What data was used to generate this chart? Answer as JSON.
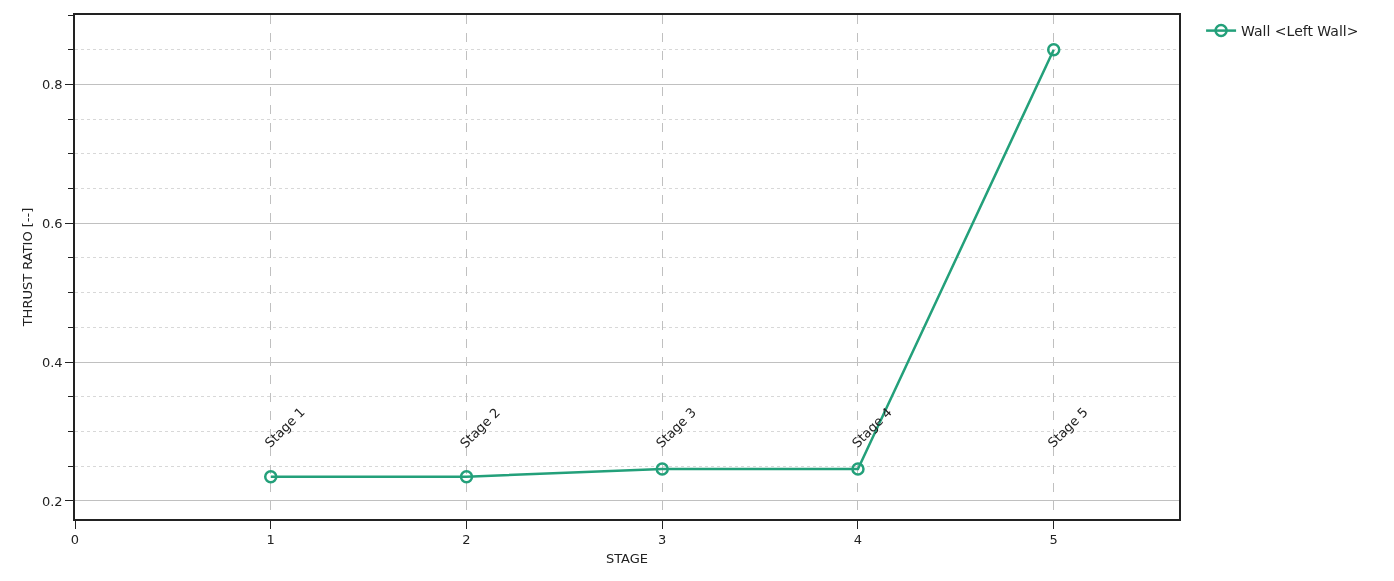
{
  "chart_data": {
    "type": "line",
    "xlabel": "STAGE",
    "ylabel": "THRUST RATIO [--]",
    "x": [
      1,
      2,
      3,
      4,
      5
    ],
    "series": [
      {
        "name": "Wall <Left Wall>",
        "color": "#23a07a",
        "values": [
          0.235,
          0.235,
          0.246,
          0.246,
          0.85
        ]
      }
    ],
    "annotations": [
      "Stage 1",
      "Stage 2",
      "Stage 3",
      "Stage 4",
      "Stage 5"
    ],
    "xlim": [
      0,
      5.64
    ],
    "xticks": [
      0,
      1,
      2,
      3,
      4,
      5
    ],
    "ylim": [
      0.174,
      0.9
    ],
    "yticks": [
      0.2,
      {
        "value": 0.25,
        "label": null
      },
      {
        "value": 0.3,
        "label": null
      },
      {
        "value": 0.35,
        "label": null
      },
      0.4,
      {
        "value": 0.45,
        "label": null
      },
      {
        "value": 0.5,
        "label": null
      },
      {
        "value": 0.55,
        "label": null
      },
      0.6,
      {
        "value": 0.65,
        "label": null
      },
      {
        "value": 0.7,
        "label": null
      },
      {
        "value": 0.75,
        "label": null
      },
      0.8,
      {
        "value": 0.85,
        "label": null
      },
      {
        "value": 0.9,
        "label": null
      }
    ],
    "grid": true,
    "legend": "top right",
    "marker": "circle",
    "line_style": "solid"
  }
}
